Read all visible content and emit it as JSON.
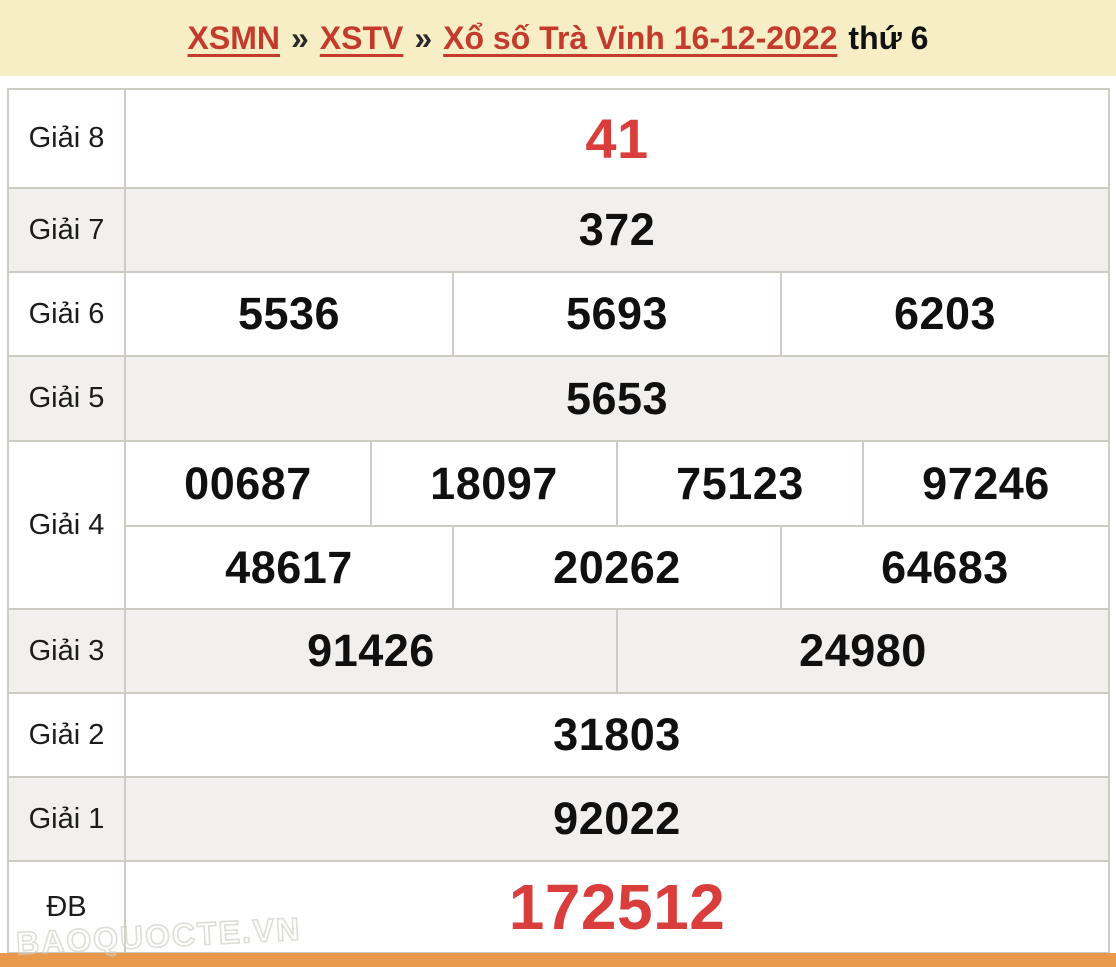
{
  "header": {
    "separator": "»",
    "links": [
      {
        "label": "XSMN"
      },
      {
        "label": "XSTV"
      },
      {
        "label": "Xổ số Trà Vinh 16-12-2022"
      }
    ],
    "suffix": "thứ 6"
  },
  "results": {
    "rows": [
      {
        "label": "Giải 8",
        "values": [
          "41"
        ],
        "highlight": true
      },
      {
        "label": "Giải 7",
        "values": [
          "372"
        ]
      },
      {
        "label": "Giải 6",
        "values": [
          "5536",
          "5693",
          "6203"
        ]
      },
      {
        "label": "Giải 5",
        "values": [
          "5653"
        ]
      },
      {
        "label": "Giải 4",
        "values": [
          "00687",
          "18097",
          "75123",
          "97246",
          "48617",
          "20262",
          "64683"
        ]
      },
      {
        "label": "Giải 3",
        "values": [
          "91426",
          "24980"
        ]
      },
      {
        "label": "Giải 2",
        "values": [
          "31803"
        ]
      },
      {
        "label": "Giải 1",
        "values": [
          "92022"
        ]
      },
      {
        "label": "ĐB",
        "values": [
          "172512"
        ],
        "highlight": true
      }
    ]
  },
  "watermark": "BAOQUOCTE.VN",
  "colors": {
    "header_background": "#f8eec5",
    "link_red": "#c23b2d",
    "highlight_red": "#d93d3c",
    "alt_row_background": "#f1f0ee",
    "border": "#ccccc4",
    "orange_bar": "#e8994c"
  }
}
